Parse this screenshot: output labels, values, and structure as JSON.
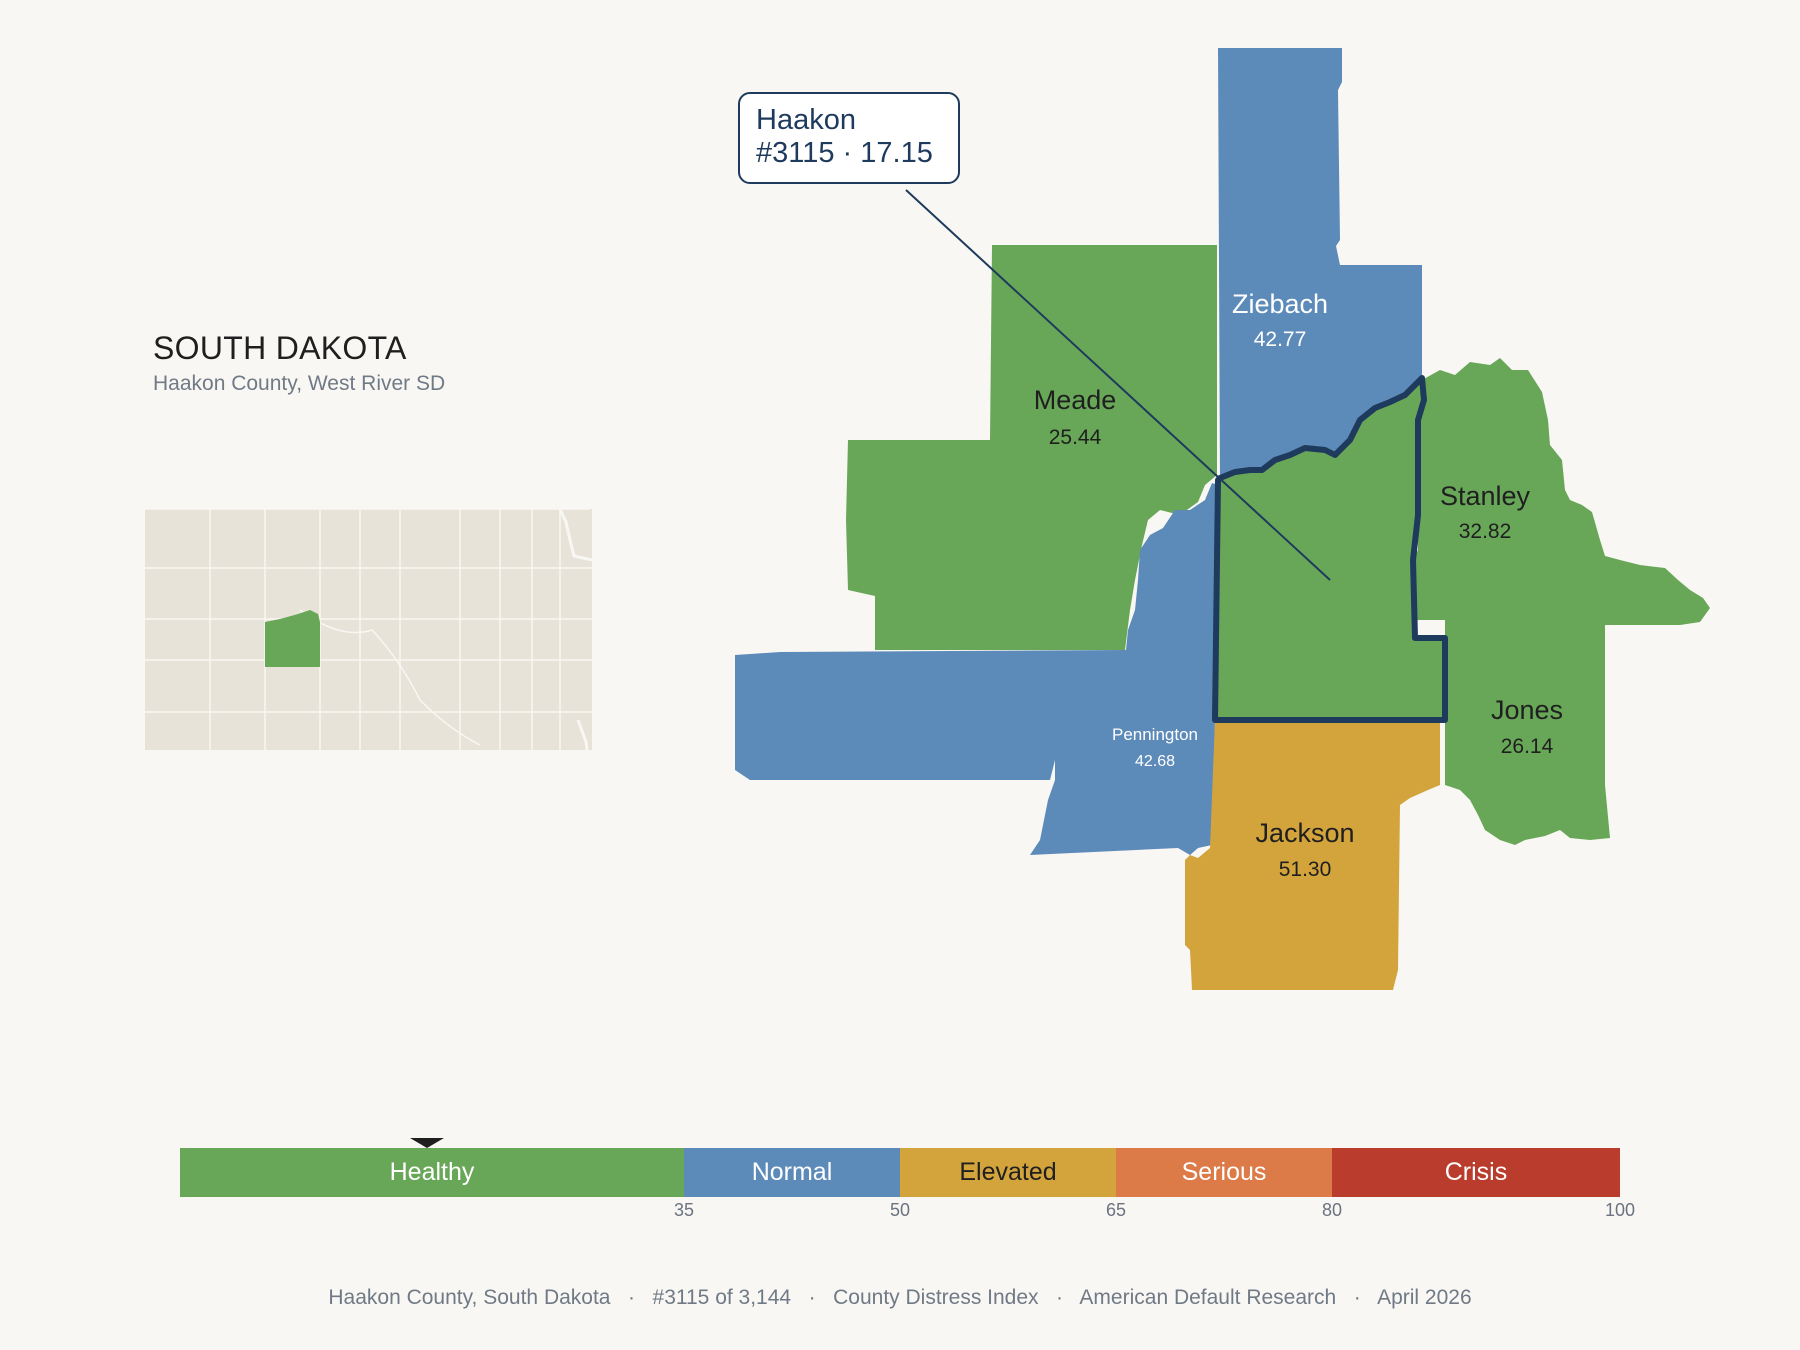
{
  "header": {
    "state": "SOUTH DAKOTA",
    "subtitle": "Haakon County, West River SD"
  },
  "callout": {
    "name": "Haakon",
    "detail": "#3115 · 17.15"
  },
  "counties": [
    {
      "name": "Meade",
      "value": "25.44",
      "color": "#68a758"
    },
    {
      "name": "Ziebach",
      "value": "42.77",
      "color": "#5c8bba"
    },
    {
      "name": "Stanley",
      "value": "32.82",
      "color": "#68a758"
    },
    {
      "name": "Pennington",
      "value": "42.68",
      "color": "#5c8bba"
    },
    {
      "name": "Jones",
      "value": "26.14",
      "color": "#68a758"
    },
    {
      "name": "Jackson",
      "value": "51.30",
      "color": "#d4a43c"
    },
    {
      "name": "Haakon",
      "value": "17.15",
      "color": "#68a758",
      "highlighted": true
    }
  ],
  "legend": {
    "segments": [
      {
        "label": "Healthy",
        "from": 0,
        "to": 35,
        "color": "#68a758",
        "text_color": "#ffffff"
      },
      {
        "label": "Normal",
        "from": 35,
        "to": 50,
        "color": "#5c8bba",
        "text_color": "#ffffff"
      },
      {
        "label": "Elevated",
        "from": 50,
        "to": 65,
        "color": "#d4a43c",
        "text_color": "#1f1f1f"
      },
      {
        "label": "Serious",
        "from": 65,
        "to": 80,
        "color": "#dc7a48",
        "text_color": "#ffffff"
      },
      {
        "label": "Crisis",
        "from": 80,
        "to": 100,
        "color": "#b93c2c",
        "text_color": "#ffffff"
      }
    ],
    "ticks": [
      "35",
      "50",
      "65",
      "80",
      "100"
    ],
    "marker_value": 17.15
  },
  "footer": {
    "county": "Haakon County, South Dakota",
    "rank": "#3115 of 3,144",
    "index": "County Distress Index",
    "source": "American Default Research",
    "date": "April 2026"
  },
  "colors": {
    "background": "#f9f7f3",
    "outline": "#1e3a5c",
    "inset_fill": "#e8e3d8"
  }
}
